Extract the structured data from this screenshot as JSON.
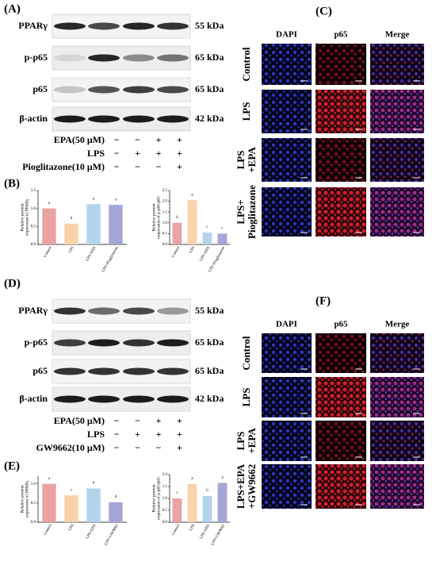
{
  "panels": {
    "A": {
      "label": "(A)",
      "blots": [
        {
          "protein": "PPARγ",
          "size": "55 kDa"
        },
        {
          "protein": "p-p65",
          "size": "65 kDa"
        },
        {
          "protein": "p65",
          "size": "65 kDa"
        },
        {
          "protein": "β-actin",
          "size": "42 kDa"
        }
      ],
      "treatments": [
        {
          "label": "EPA(50 μM)",
          "signs": [
            "−",
            "−",
            "+",
            "+"
          ]
        },
        {
          "label": "LPS",
          "signs": [
            "−",
            "+",
            "+",
            "+"
          ]
        },
        {
          "label": "Pioglitazone(10 μM)",
          "signs": [
            "−",
            "−",
            "−",
            "+"
          ]
        }
      ]
    },
    "B": {
      "label": "(B)"
    },
    "C": {
      "label": "(C)",
      "columns": [
        "DAPI",
        "p65",
        "Merge"
      ],
      "rows": [
        [
          "Control"
        ],
        [
          "LPS"
        ],
        [
          "LPS",
          "+EPA"
        ],
        [
          "LPS+",
          "Pioglitazone"
        ]
      ]
    },
    "D": {
      "label": "(D)",
      "blots": [
        {
          "protein": "PPARγ",
          "size": "55 kDa"
        },
        {
          "protein": "p-p65",
          "size": "65 kDa"
        },
        {
          "protein": "p65",
          "size": "65 kDa"
        },
        {
          "protein": "β-actin",
          "size": "42 kDa"
        }
      ],
      "treatments": [
        {
          "label": "EPA(50 μM)",
          "signs": [
            "−",
            "−",
            "+",
            "+"
          ]
        },
        {
          "label": "LPS",
          "signs": [
            "−",
            "+",
            "+",
            "+"
          ]
        },
        {
          "label": "GW9662(10 μM)",
          "signs": [
            "−",
            "−",
            "−",
            "+"
          ]
        }
      ]
    },
    "E": {
      "label": "(E)"
    },
    "F": {
      "label": "(F)",
      "columns": [
        "DAPI",
        "p65",
        "Merge"
      ],
      "rows": [
        [
          "Control"
        ],
        [
          "LPS"
        ],
        [
          "LPS",
          "+EPA"
        ],
        [
          "LPS+EPA",
          "+GW9662"
        ]
      ]
    }
  },
  "chart_data": [
    {
      "type": "bar",
      "y_label": [
        "Relative protein",
        "expression of PPARγ"
      ],
      "categories": [
        "Control",
        "LPS",
        "LPS+EPA",
        "LPS+Pioglitazone"
      ],
      "values": [
        1.0,
        0.58,
        1.12,
        1.1
      ],
      "annotations": [
        "a",
        "b",
        "a",
        "a"
      ],
      "colors": [
        "#e8a3a3",
        "#f9d2aa",
        "#b3d3ea",
        "#a3a6d6"
      ],
      "ylim": [
        0,
        1.5
      ],
      "yticks": [
        {
          "value": 0,
          "label": "0.0"
        },
        {
          "value": 0.5,
          "label": "0.5"
        },
        {
          "value": 1,
          "label": "1.0"
        },
        {
          "value": 1.5,
          "label": "1.5"
        }
      ]
    },
    {
      "type": "bar",
      "y_label": [
        "Relative protein",
        "expression of p-p65/p65"
      ],
      "categories": [
        "Control",
        "LPS",
        "LPS+EPA",
        "LPS+Pioglitazone"
      ],
      "values": [
        1.0,
        2.05,
        0.55,
        0.5
      ],
      "annotations": [
        "b",
        "a",
        "c",
        "c"
      ],
      "colors": [
        "#e8a3a3",
        "#f9d2aa",
        "#b3d3ea",
        "#a3a6d6"
      ],
      "ylim": [
        0,
        2.5
      ],
      "yticks": [
        {
          "value": 0,
          "label": "0.0"
        },
        {
          "value": 0.5,
          "label": "0.5"
        },
        {
          "value": 1,
          "label": "1.0"
        },
        {
          "value": 1.5,
          "label": "1.5"
        },
        {
          "value": 2,
          "label": "2.0"
        },
        {
          "value": 2.5,
          "label": "2.5"
        }
      ]
    },
    {
      "type": "bar",
      "y_label": [
        "Relative protein",
        "expression of PPARγ"
      ],
      "categories": [
        "Control",
        "LPS",
        "LPS+EPA",
        "LPS+GW9662"
      ],
      "values": [
        1.0,
        0.7,
        0.88,
        0.52
      ],
      "annotations": [
        "a",
        "c",
        "b",
        "d"
      ],
      "colors": [
        "#e8a3a3",
        "#f9d2aa",
        "#b3d3ea",
        "#a3a6d6"
      ],
      "ylim": [
        0,
        1.2
      ],
      "yticks": [
        {
          "value": 0,
          "label": "0.0"
        },
        {
          "value": 0.5,
          "label": "0.5"
        },
        {
          "value": 1,
          "label": "1.0"
        }
      ]
    },
    {
      "type": "bar",
      "y_label": [
        "Relative protein",
        "expression of p-p65/p65"
      ],
      "categories": [
        "Control",
        "LPS",
        "LPS+EPA",
        "LPS+GW9662"
      ],
      "values": [
        1.0,
        1.6,
        1.1,
        1.65
      ],
      "annotations": [
        "c",
        "a",
        "b",
        "a"
      ],
      "colors": [
        "#e8a3a3",
        "#f9d2aa",
        "#b3d3ea",
        "#a3a6d6"
      ],
      "ylim": [
        0,
        2.0
      ],
      "yticks": [
        {
          "value": 0,
          "label": "0.0"
        },
        {
          "value": 0.5,
          "label": "0.5"
        },
        {
          "value": 1,
          "label": "1.0"
        },
        {
          "value": 1.5,
          "label": "1.5"
        },
        {
          "value": 2,
          "label": "2.0"
        }
      ]
    }
  ]
}
